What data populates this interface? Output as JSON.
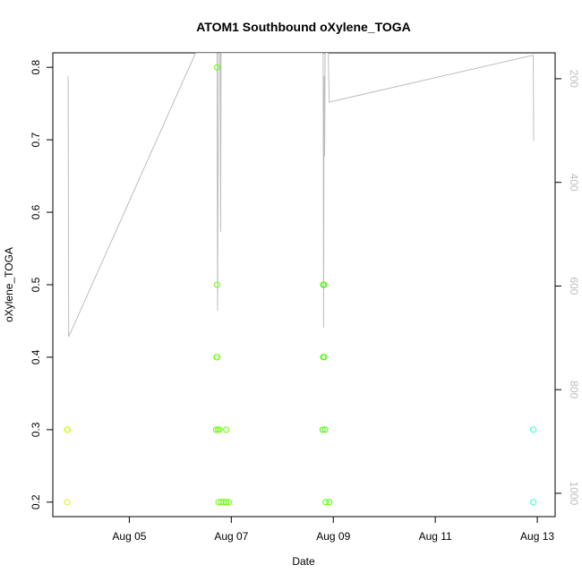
{
  "chart_data": {
    "type": "scatter",
    "title": "ATOM1 Southbound oXylene_TOGA",
    "xlabel": "Date",
    "ylabel": "oXylene_TOGA",
    "x_ticks": [
      {
        "label": "Aug 05",
        "day": 5
      },
      {
        "label": "Aug 07",
        "day": 7
      },
      {
        "label": "Aug 09",
        "day": 9
      },
      {
        "label": "Aug 11",
        "day": 11
      },
      {
        "label": "Aug 13",
        "day": 13
      }
    ],
    "xlim_days": [
      3.5,
      13.35
    ],
    "ylim": [
      0.18,
      0.82
    ],
    "y_ticks": [
      0.2,
      0.3,
      0.4,
      0.5,
      0.6,
      0.7,
      0.8
    ],
    "y2_ticks": [
      200,
      400,
      600,
      800,
      1000
    ],
    "y2lim": [
      1045,
      150
    ],
    "y2_reversed": true,
    "grid": false,
    "points": [
      {
        "day": 3.78,
        "y": 0.3,
        "color": "#ccff00"
      },
      {
        "day": 3.79,
        "y": 0.3,
        "color": "#ccff00"
      },
      {
        "day": 3.78,
        "y": 0.2,
        "color": "#ccff00"
      },
      {
        "day": 6.72,
        "y": 0.8,
        "color": "#66ff00"
      },
      {
        "day": 6.72,
        "y": 0.5,
        "color": "#66ff00"
      },
      {
        "day": 6.71,
        "y": 0.4,
        "color": "#66ff00"
      },
      {
        "day": 6.72,
        "y": 0.4,
        "color": "#66ff00"
      },
      {
        "day": 6.7,
        "y": 0.3,
        "color": "#66ff00"
      },
      {
        "day": 6.74,
        "y": 0.3,
        "color": "#66ff00"
      },
      {
        "day": 6.77,
        "y": 0.3,
        "color": "#66ff00"
      },
      {
        "day": 6.9,
        "y": 0.3,
        "color": "#66ff00"
      },
      {
        "day": 6.75,
        "y": 0.2,
        "color": "#66ff00"
      },
      {
        "day": 6.8,
        "y": 0.2,
        "color": "#66ff00"
      },
      {
        "day": 6.85,
        "y": 0.2,
        "color": "#66ff00"
      },
      {
        "day": 6.9,
        "y": 0.2,
        "color": "#66ff00"
      },
      {
        "day": 6.95,
        "y": 0.2,
        "color": "#66ff00"
      },
      {
        "day": 8.8,
        "y": 0.5,
        "color": "#44ff00"
      },
      {
        "day": 8.82,
        "y": 0.5,
        "color": "#44ff00"
      },
      {
        "day": 8.8,
        "y": 0.4,
        "color": "#44ff00"
      },
      {
        "day": 8.82,
        "y": 0.4,
        "color": "#44ff00"
      },
      {
        "day": 8.79,
        "y": 0.3,
        "color": "#44ff00"
      },
      {
        "day": 8.84,
        "y": 0.3,
        "color": "#44ff00"
      },
      {
        "day": 8.85,
        "y": 0.2,
        "color": "#44ff00"
      },
      {
        "day": 8.92,
        "y": 0.2,
        "color": "#44ff00"
      },
      {
        "day": 12.92,
        "y": 0.3,
        "color": "#33ffcc"
      },
      {
        "day": 12.92,
        "y": 0.2,
        "color": "#33ffcc"
      }
    ],
    "secondary_line": {
      "axis": "right",
      "color": "#bdbdbd",
      "points": [
        {
          "day": 3.8,
          "v": 195
        },
        {
          "day": 3.81,
          "v": 698
        },
        {
          "day": 6.3,
          "v": 150
        },
        {
          "day": 6.72,
          "v": 150
        },
        {
          "day": 6.73,
          "v": 648
        },
        {
          "day": 6.75,
          "v": 150
        },
        {
          "day": 6.78,
          "v": 150
        },
        {
          "day": 6.79,
          "v": 495
        },
        {
          "day": 6.8,
          "v": 150
        },
        {
          "day": 8.8,
          "v": 150
        },
        {
          "day": 8.81,
          "v": 680
        },
        {
          "day": 8.82,
          "v": 195
        },
        {
          "day": 8.83,
          "v": 350
        },
        {
          "day": 8.84,
          "v": 150
        },
        {
          "day": 8.9,
          "v": 150
        },
        {
          "day": 8.92,
          "v": 245
        },
        {
          "day": 12.9,
          "v": 155
        },
        {
          "day": 12.92,
          "v": 155
        },
        {
          "day": 12.93,
          "v": 320
        }
      ]
    }
  }
}
